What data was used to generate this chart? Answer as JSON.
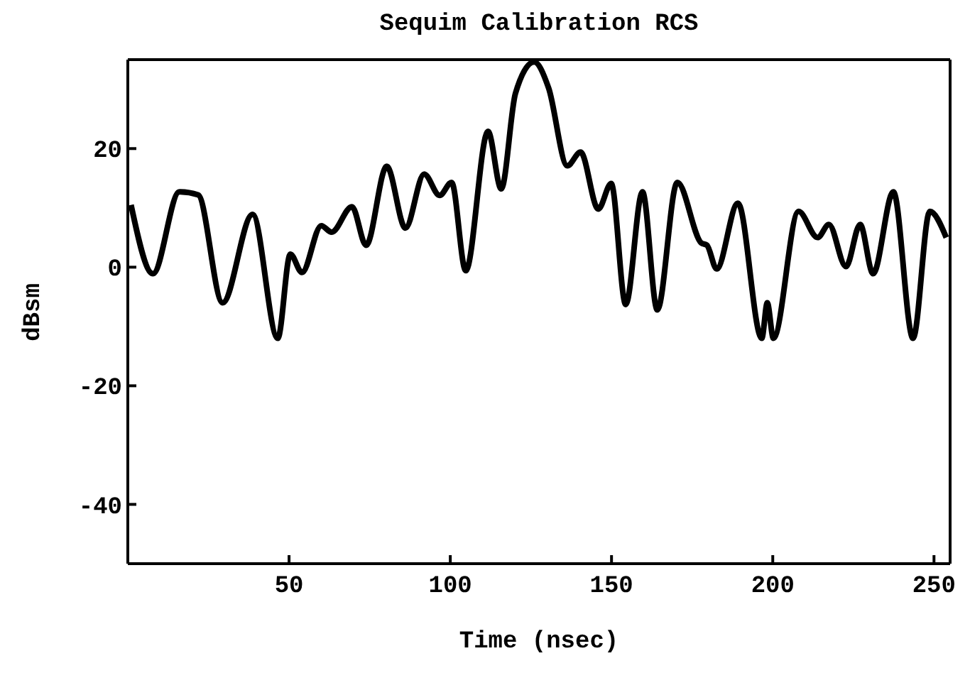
{
  "chart_data": {
    "type": "line",
    "title": "Sequim Calibration RCS",
    "xlabel": "Time (nsec)",
    "ylabel": "dBsm",
    "x": [
      1,
      7.8,
      16,
      21.8,
      29.4,
      38.7,
      46.5,
      50.4,
      54,
      60,
      63.2,
      69.5,
      73.9,
      80.3,
      86.1,
      91.9,
      96.7,
      100.4,
      104.8,
      111.7,
      115.8,
      120.2,
      126,
      130.5,
      136.3,
      140.4,
      145.9,
      149.9,
      154.4,
      159.6,
      164.2,
      170.4,
      177.8,
      179.6,
      182.6,
      189.2,
      196.6,
      198.3,
      200.2,
      208,
      213.9,
      217.4,
      222.7,
      227.1,
      231.1,
      237.4,
      243.5,
      248.7,
      253.8
    ],
    "series": [
      {
        "color": "#000000",
        "values": [
          10.5,
          -1.1,
          12.7,
          12.2,
          -6,
          8.9,
          -12,
          2.2,
          -0.9,
          7,
          5.9,
          10.2,
          3.7,
          17,
          6.6,
          15.7,
          12.1,
          14.3,
          -0.6,
          22.9,
          13.2,
          29.3,
          34.6,
          30.2,
          17.1,
          19.4,
          9.8,
          14.1,
          -6.3,
          12.7,
          -7.2,
          14.3,
          4.1,
          3.7,
          -0.3,
          10.8,
          -12,
          -6,
          -12,
          9.4,
          5,
          7.2,
          0.1,
          7.2,
          -1.1,
          12.7,
          -12,
          9.4,
          5
        ]
      }
    ],
    "xlim": [
      0,
      255
    ],
    "xticks": [
      50,
      100,
      150,
      200,
      250
    ],
    "ylim": [
      -50,
      35
    ],
    "yticks": [
      -40,
      -20,
      0,
      20
    ],
    "grid": false,
    "marker": "none",
    "line_style": "solid"
  }
}
